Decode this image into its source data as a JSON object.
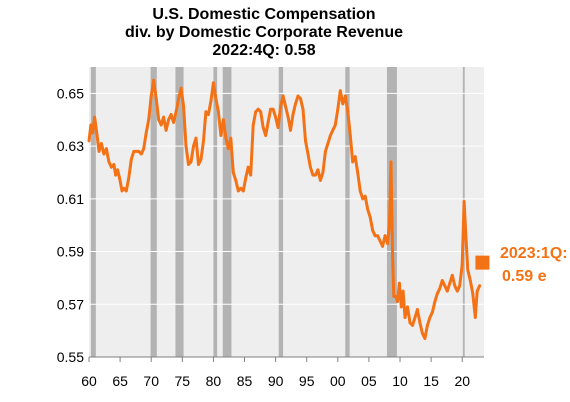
{
  "chart_data": {
    "type": "line",
    "title_lines": [
      "U.S. Domestic Compensation",
      "div. by Domestic Corporate Revenue",
      "2022:4Q: 0.58"
    ],
    "xlabel": "",
    "ylabel": "",
    "x_range": [
      1960,
      2023.5
    ],
    "ylim": [
      0.55,
      0.66
    ],
    "y_ticks": [
      0.55,
      0.57,
      0.59,
      0.61,
      0.63,
      0.65
    ],
    "y_tick_labels": [
      "0.55",
      "0.57",
      "0.59",
      "0.61",
      "0.63",
      "0.65"
    ],
    "x_ticks": [
      1960,
      1965,
      1970,
      1975,
      1980,
      1985,
      1990,
      1995,
      2000,
      2005,
      2010,
      2015,
      2020
    ],
    "x_tick_labels": [
      "60",
      "65",
      "70",
      "75",
      "80",
      "85",
      "90",
      "95",
      "00",
      "05",
      "10",
      "15",
      "20"
    ],
    "grid": true,
    "colors": {
      "line": "#f47216",
      "plot_background": "#eeeeee",
      "gridline": "#ffffff",
      "recession": "#b3b3b3",
      "annotation": "#f47216"
    },
    "recessions": [
      [
        1960.3,
        1961.1
      ],
      [
        1969.9,
        1970.9
      ],
      [
        1973.9,
        1975.2
      ],
      [
        1980.0,
        1980.6
      ],
      [
        1981.5,
        1982.9
      ],
      [
        1990.5,
        1991.2
      ],
      [
        2001.2,
        2001.9
      ],
      [
        2007.9,
        2009.5
      ],
      [
        2020.1,
        2020.4
      ]
    ],
    "series": [
      {
        "points": [
          [
            1960.0,
            0.632
          ],
          [
            1960.3,
            0.638
          ],
          [
            1960.6,
            0.635
          ],
          [
            1960.9,
            0.641
          ],
          [
            1961.3,
            0.634
          ],
          [
            1961.6,
            0.628
          ],
          [
            1962.0,
            0.631
          ],
          [
            1962.4,
            0.627
          ],
          [
            1962.8,
            0.629
          ],
          [
            1963.2,
            0.624
          ],
          [
            1963.6,
            0.622
          ],
          [
            1964.0,
            0.623
          ],
          [
            1964.3,
            0.619
          ],
          [
            1964.6,
            0.621
          ],
          [
            1964.9,
            0.618
          ],
          [
            1965.3,
            0.613
          ],
          [
            1965.6,
            0.614
          ],
          [
            1966.0,
            0.613
          ],
          [
            1966.4,
            0.618
          ],
          [
            1966.8,
            0.625
          ],
          [
            1967.2,
            0.628
          ],
          [
            1967.6,
            0.628
          ],
          [
            1968.0,
            0.628
          ],
          [
            1968.4,
            0.627
          ],
          [
            1968.8,
            0.629
          ],
          [
            1969.2,
            0.635
          ],
          [
            1969.6,
            0.64
          ],
          [
            1970.0,
            0.649
          ],
          [
            1970.4,
            0.655
          ],
          [
            1970.8,
            0.648
          ],
          [
            1971.2,
            0.64
          ],
          [
            1971.6,
            0.638
          ],
          [
            1972.0,
            0.641
          ],
          [
            1972.4,
            0.636
          ],
          [
            1972.8,
            0.64
          ],
          [
            1973.2,
            0.642
          ],
          [
            1973.6,
            0.639
          ],
          [
            1974.0,
            0.643
          ],
          [
            1974.4,
            0.648
          ],
          [
            1974.8,
            0.652
          ],
          [
            1975.2,
            0.645
          ],
          [
            1975.6,
            0.63
          ],
          [
            1976.0,
            0.623
          ],
          [
            1976.4,
            0.624
          ],
          [
            1976.8,
            0.63
          ],
          [
            1977.2,
            0.633
          ],
          [
            1977.6,
            0.623
          ],
          [
            1978.0,
            0.625
          ],
          [
            1978.4,
            0.632
          ],
          [
            1978.8,
            0.643
          ],
          [
            1979.2,
            0.642
          ],
          [
            1979.6,
            0.647
          ],
          [
            1980.0,
            0.654
          ],
          [
            1980.4,
            0.648
          ],
          [
            1980.8,
            0.643
          ],
          [
            1981.2,
            0.634
          ],
          [
            1981.6,
            0.64
          ],
          [
            1982.0,
            0.633
          ],
          [
            1982.4,
            0.629
          ],
          [
            1982.8,
            0.633
          ],
          [
            1983.2,
            0.62
          ],
          [
            1983.6,
            0.617
          ],
          [
            1984.0,
            0.613
          ],
          [
            1984.4,
            0.614
          ],
          [
            1984.8,
            0.613
          ],
          [
            1985.2,
            0.618
          ],
          [
            1985.6,
            0.622
          ],
          [
            1986.0,
            0.619
          ],
          [
            1986.4,
            0.638
          ],
          [
            1986.8,
            0.643
          ],
          [
            1987.2,
            0.644
          ],
          [
            1987.6,
            0.643
          ],
          [
            1988.0,
            0.637
          ],
          [
            1988.4,
            0.634
          ],
          [
            1988.8,
            0.639
          ],
          [
            1989.2,
            0.644
          ],
          [
            1989.6,
            0.644
          ],
          [
            1990.0,
            0.641
          ],
          [
            1990.4,
            0.637
          ],
          [
            1990.8,
            0.645
          ],
          [
            1991.2,
            0.649
          ],
          [
            1991.6,
            0.645
          ],
          [
            1992.0,
            0.641
          ],
          [
            1992.4,
            0.636
          ],
          [
            1992.8,
            0.642
          ],
          [
            1993.2,
            0.646
          ],
          [
            1993.6,
            0.649
          ],
          [
            1994.0,
            0.648
          ],
          [
            1994.4,
            0.644
          ],
          [
            1994.8,
            0.632
          ],
          [
            1995.2,
            0.627
          ],
          [
            1995.6,
            0.622
          ],
          [
            1996.0,
            0.619
          ],
          [
            1996.4,
            0.619
          ],
          [
            1996.8,
            0.621
          ],
          [
            1997.2,
            0.617
          ],
          [
            1997.6,
            0.62
          ],
          [
            1998.0,
            0.628
          ],
          [
            1998.4,
            0.631
          ],
          [
            1998.8,
            0.634
          ],
          [
            1999.2,
            0.636
          ],
          [
            1999.6,
            0.638
          ],
          [
            2000.0,
            0.644
          ],
          [
            2000.4,
            0.651
          ],
          [
            2000.8,
            0.646
          ],
          [
            2001.2,
            0.649
          ],
          [
            2001.6,
            0.643
          ],
          [
            2002.0,
            0.634
          ],
          [
            2002.4,
            0.624
          ],
          [
            2002.8,
            0.626
          ],
          [
            2003.2,
            0.62
          ],
          [
            2003.6,
            0.613
          ],
          [
            2004.0,
            0.61
          ],
          [
            2004.4,
            0.611
          ],
          [
            2004.8,
            0.606
          ],
          [
            2005.2,
            0.603
          ],
          [
            2005.6,
            0.598
          ],
          [
            2006.0,
            0.596
          ],
          [
            2006.4,
            0.596
          ],
          [
            2006.8,
            0.594
          ],
          [
            2007.2,
            0.592
          ],
          [
            2007.6,
            0.596
          ],
          [
            2008.0,
            0.593
          ],
          [
            2008.3,
            0.6
          ],
          [
            2008.55,
            0.624
          ],
          [
            2008.8,
            0.588
          ],
          [
            2009.0,
            0.573
          ],
          [
            2009.3,
            0.573
          ],
          [
            2009.6,
            0.571
          ],
          [
            2009.9,
            0.578
          ],
          [
            2010.2,
            0.569
          ],
          [
            2010.5,
            0.575
          ],
          [
            2010.8,
            0.565
          ],
          [
            2011.2,
            0.569
          ],
          [
            2011.6,
            0.563
          ],
          [
            2012.0,
            0.562
          ],
          [
            2012.4,
            0.565
          ],
          [
            2012.8,
            0.568
          ],
          [
            2013.2,
            0.563
          ],
          [
            2013.6,
            0.559
          ],
          [
            2014.0,
            0.557
          ],
          [
            2014.4,
            0.562
          ],
          [
            2014.8,
            0.565
          ],
          [
            2015.2,
            0.567
          ],
          [
            2015.6,
            0.571
          ],
          [
            2016.0,
            0.574
          ],
          [
            2016.4,
            0.576
          ],
          [
            2016.8,
            0.579
          ],
          [
            2017.2,
            0.577
          ],
          [
            2017.6,
            0.575
          ],
          [
            2018.0,
            0.578
          ],
          [
            2018.4,
            0.581
          ],
          [
            2018.8,
            0.577
          ],
          [
            2019.2,
            0.575
          ],
          [
            2019.6,
            0.577
          ],
          [
            2020.0,
            0.585
          ],
          [
            2020.3,
            0.609
          ],
          [
            2020.6,
            0.595
          ],
          [
            2020.9,
            0.583
          ],
          [
            2021.3,
            0.579
          ],
          [
            2021.7,
            0.574
          ],
          [
            2022.1,
            0.565
          ],
          [
            2022.4,
            0.575
          ],
          [
            2022.8,
            0.577
          ]
        ]
      }
    ],
    "annotation": {
      "label_line1": "2023:1Q:",
      "label_line2": "0.59 e",
      "marker_x": 2023.25,
      "marker_y": 0.5858
    }
  }
}
